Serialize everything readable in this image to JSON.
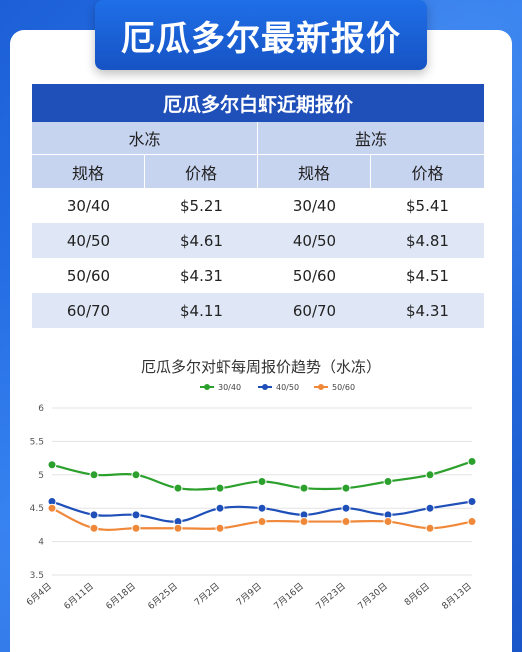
{
  "banner": {
    "title": "厄瓜多尔最新报价"
  },
  "table": {
    "title": "厄瓜多尔白虾近期报价",
    "groups": [
      "水冻",
      "盐冻"
    ],
    "headers": [
      "规格",
      "价格",
      "规格",
      "价格"
    ],
    "rows": [
      [
        "30/40",
        "$5.21",
        "30/40",
        "$5.41"
      ],
      [
        "40/50",
        "$4.61",
        "40/50",
        "$4.81"
      ],
      [
        "50/60",
        "$4.31",
        "50/60",
        "$4.51"
      ],
      [
        "60/70",
        "$4.11",
        "60/70",
        "$4.31"
      ]
    ]
  },
  "chart_data": {
    "type": "line",
    "title": "厄瓜多尔对虾每周报价趋势（水冻）",
    "categories": [
      "6月4日",
      "6月11日",
      "6月18日",
      "6月25日",
      "7月2日",
      "7月9日",
      "7月16日",
      "7月23日",
      "7月30日",
      "8月6日",
      "8月13日"
    ],
    "series": [
      {
        "name": "30/40",
        "color": "#2ca02c",
        "values": [
          5.15,
          5.0,
          5.0,
          4.8,
          4.8,
          4.9,
          4.8,
          4.8,
          4.9,
          5.0,
          5.2
        ]
      },
      {
        "name": "40/50",
        "color": "#1f4fb8",
        "values": [
          4.6,
          4.4,
          4.4,
          4.3,
          4.5,
          4.5,
          4.4,
          4.5,
          4.4,
          4.5,
          4.6
        ]
      },
      {
        "name": "50/60",
        "color": "#f0883a",
        "values": [
          4.5,
          4.2,
          4.2,
          4.2,
          4.2,
          4.3,
          4.3,
          4.3,
          4.3,
          4.2,
          4.3
        ]
      }
    ],
    "ylim": [
      3.5,
      6
    ],
    "yticks": [
      "6",
      "5.5",
      "5",
      "4.5",
      "4",
      "3.5"
    ],
    "grid": true,
    "legend": "top"
  }
}
